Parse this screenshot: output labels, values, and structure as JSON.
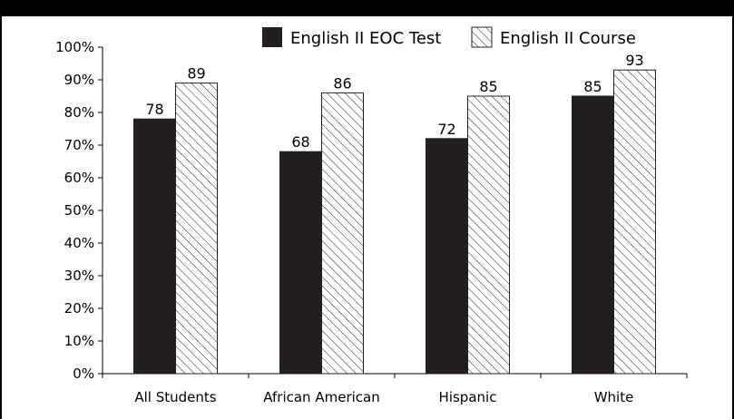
{
  "chart_data": {
    "type": "bar",
    "categories": [
      "All Students",
      "African American",
      "Hispanic",
      "White"
    ],
    "series": [
      {
        "name": "English II EOC Test",
        "values": [
          78,
          68,
          72,
          85
        ],
        "pattern": "solid",
        "color": "#231f20"
      },
      {
        "name": "English II Course",
        "values": [
          89,
          86,
          85,
          93
        ],
        "pattern": "hatched",
        "color": "#231f20"
      }
    ],
    "yticks": [
      "0%",
      "10%",
      "20%",
      "30%",
      "40%",
      "50%",
      "60%",
      "70%",
      "80%",
      "90%",
      "100%"
    ],
    "ylim": [
      0,
      100
    ],
    "grid": false,
    "legend_position": "top-right",
    "title": "",
    "xlabel": "",
    "ylabel": ""
  }
}
